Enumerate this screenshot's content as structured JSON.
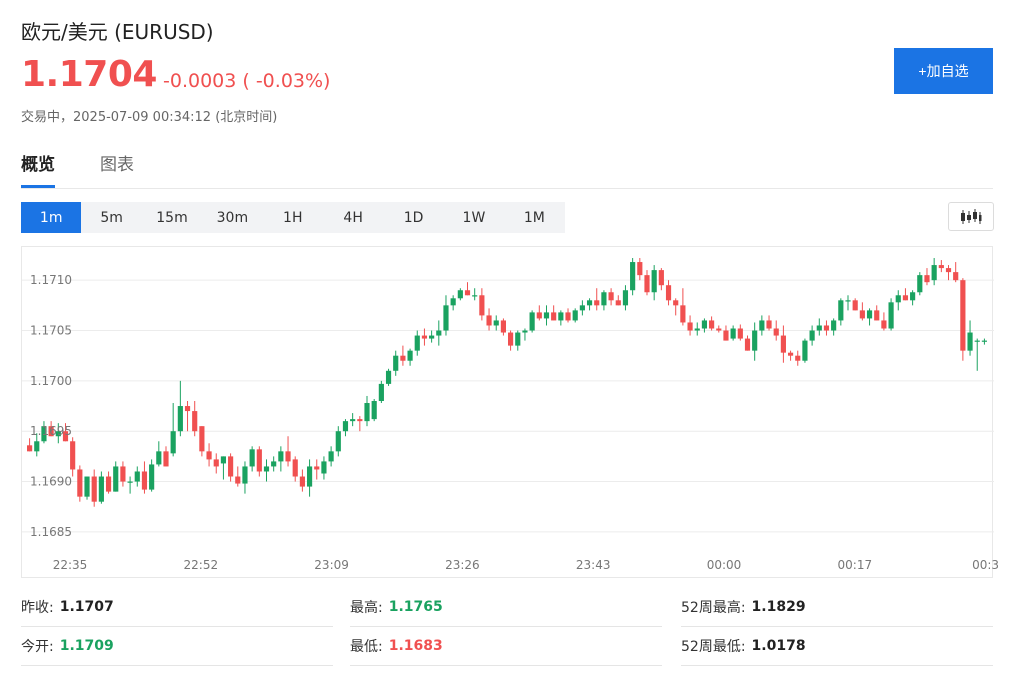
{
  "header": {
    "title": "欧元/美元 (EURUSD)",
    "price": "1.1704",
    "change": "-0.0003 ( -0.03%)",
    "status": "交易中，2025-07-09 00:34:12 (北京时间)",
    "watch_button": "+加自选"
  },
  "tabs": [
    {
      "label": "概览",
      "active": true
    },
    {
      "label": "图表",
      "active": false
    }
  ],
  "intervals": [
    {
      "label": "1m",
      "active": true
    },
    {
      "label": "5m"
    },
    {
      "label": "15m"
    },
    {
      "label": "30m"
    },
    {
      "label": "1H"
    },
    {
      "label": "4H"
    },
    {
      "label": "1D"
    },
    {
      "label": "1W"
    },
    {
      "label": "1M"
    }
  ],
  "chart_type_icon": "candlestick-icon",
  "colors": {
    "accent": "#1b74e4",
    "up": "#1aa260",
    "down": "#f05050"
  },
  "chart_data": {
    "type": "candlestick",
    "title": "",
    "xlabel": "",
    "ylabel": "",
    "ylim": [
      1.16835,
      1.17125
    ],
    "yticks": [
      "1.1685",
      "1.1690",
      "1.1695",
      "1.1700",
      "1.1705",
      "1.1710"
    ],
    "xticks": [
      "22:35",
      "22:52",
      "23:09",
      "23:26",
      "23:43",
      "00:00",
      "00:17",
      "00:3"
    ],
    "grid": true,
    "candles": [
      [
        1.16936,
        1.16943,
        1.1693,
        1.1693
      ],
      [
        1.1693,
        1.16948,
        1.16925,
        1.1694
      ],
      [
        1.1694,
        1.1696,
        1.16938,
        1.16955
      ],
      [
        1.16955,
        1.1696,
        1.16945,
        1.16945
      ],
      [
        1.16945,
        1.16958,
        1.16938,
        1.1695
      ],
      [
        1.1695,
        1.16958,
        1.1694,
        1.1694
      ],
      [
        1.1694,
        1.16944,
        1.16905,
        1.16912
      ],
      [
        1.16912,
        1.16916,
        1.1688,
        1.16885
      ],
      [
        1.16885,
        1.16905,
        1.16882,
        1.16905
      ],
      [
        1.16905,
        1.16912,
        1.16875,
        1.1688
      ],
      [
        1.1688,
        1.1691,
        1.16878,
        1.16905
      ],
      [
        1.16905,
        1.1691,
        1.16888,
        1.1689
      ],
      [
        1.1689,
        1.1692,
        1.1689,
        1.16915
      ],
      [
        1.16915,
        1.1692,
        1.16895,
        1.169
      ],
      [
        1.169,
        1.16905,
        1.16888,
        1.169
      ],
      [
        1.169,
        1.16915,
        1.16895,
        1.1691
      ],
      [
        1.1691,
        1.1692,
        1.16888,
        1.16892
      ],
      [
        1.16892,
        1.16922,
        1.1689,
        1.16917
      ],
      [
        1.16917,
        1.1694,
        1.16915,
        1.1693
      ],
      [
        1.1693,
        1.16935,
        1.16915,
        1.16915
      ],
      [
        1.16928,
        1.16978,
        1.16925,
        1.1695
      ],
      [
        1.1695,
        1.17,
        1.16945,
        1.16975
      ],
      [
        1.16975,
        1.1698,
        1.1695,
        1.1697
      ],
      [
        1.1697,
        1.1698,
        1.16945,
        1.1695
      ],
      [
        1.16955,
        1.16955,
        1.16925,
        1.1693
      ],
      [
        1.1693,
        1.16938,
        1.16915,
        1.16922
      ],
      [
        1.16922,
        1.16928,
        1.16908,
        1.16915
      ],
      [
        1.16918,
        1.16925,
        1.16902,
        1.16925
      ],
      [
        1.16925,
        1.16928,
        1.169,
        1.16905
      ],
      [
        1.16905,
        1.16915,
        1.16895,
        1.16898
      ],
      [
        1.16898,
        1.1692,
        1.16888,
        1.16915
      ],
      [
        1.16915,
        1.16935,
        1.1691,
        1.16932
      ],
      [
        1.16932,
        1.16935,
        1.16905,
        1.1691
      ],
      [
        1.1691,
        1.16922,
        1.169,
        1.16915
      ],
      [
        1.16915,
        1.16925,
        1.1691,
        1.1692
      ],
      [
        1.1692,
        1.16935,
        1.1691,
        1.1693
      ],
      [
        1.1693,
        1.16945,
        1.16915,
        1.1692
      ],
      [
        1.16922,
        1.16925,
        1.169,
        1.16905
      ],
      [
        1.16905,
        1.16912,
        1.1689,
        1.16895
      ],
      [
        1.16895,
        1.16922,
        1.16885,
        1.16915
      ],
      [
        1.16915,
        1.16922,
        1.16902,
        1.16912
      ],
      [
        1.16908,
        1.16925,
        1.16902,
        1.1692
      ],
      [
        1.1692,
        1.16935,
        1.16915,
        1.1693
      ],
      [
        1.1693,
        1.16955,
        1.16925,
        1.1695
      ],
      [
        1.1695,
        1.16962,
        1.16945,
        1.1696
      ],
      [
        1.1696,
        1.16968,
        1.16955,
        1.16962
      ],
      [
        1.16962,
        1.16965,
        1.1695,
        1.1696
      ],
      [
        1.1696,
        1.16985,
        1.16955,
        1.16978
      ],
      [
        1.16962,
        1.16982,
        1.1696,
        1.1698
      ],
      [
        1.1698,
        1.17,
        1.16978,
        1.16997
      ],
      [
        1.16997,
        1.17012,
        1.16995,
        1.1701
      ],
      [
        1.1701,
        1.1703,
        1.17005,
        1.17025
      ],
      [
        1.17025,
        1.17035,
        1.17015,
        1.1702
      ],
      [
        1.1702,
        1.17032,
        1.17015,
        1.1703
      ],
      [
        1.1703,
        1.1705,
        1.17025,
        1.17045
      ],
      [
        1.17045,
        1.17052,
        1.17035,
        1.17042
      ],
      [
        1.17042,
        1.1705,
        1.17038,
        1.17045
      ],
      [
        1.17045,
        1.1706,
        1.17035,
        1.1705
      ],
      [
        1.1705,
        1.17085,
        1.17045,
        1.17075
      ],
      [
        1.17075,
        1.17085,
        1.1707,
        1.17082
      ],
      [
        1.17082,
        1.17092,
        1.1708,
        1.1709
      ],
      [
        1.1709,
        1.17098,
        1.17085,
        1.17085
      ],
      [
        1.17085,
        1.17092,
        1.1708,
        1.17085
      ],
      [
        1.17085,
        1.17092,
        1.1706,
        1.17065
      ],
      [
        1.17065,
        1.17072,
        1.1705,
        1.17055
      ],
      [
        1.17055,
        1.17065,
        1.1705,
        1.1706
      ],
      [
        1.1706,
        1.17062,
        1.17045,
        1.17048
      ],
      [
        1.17048,
        1.1705,
        1.1703,
        1.17035
      ],
      [
        1.17035,
        1.1705,
        1.1703,
        1.17048
      ],
      [
        1.17048,
        1.17052,
        1.1704,
        1.1705
      ],
      [
        1.1705,
        1.1707,
        1.17048,
        1.17068
      ],
      [
        1.17068,
        1.17075,
        1.1706,
        1.17062
      ],
      [
        1.17062,
        1.17075,
        1.17055,
        1.17068
      ],
      [
        1.17068,
        1.17075,
        1.1706,
        1.1706
      ],
      [
        1.1706,
        1.1707,
        1.17055,
        1.17068
      ],
      [
        1.17068,
        1.17072,
        1.17058,
        1.1706
      ],
      [
        1.1706,
        1.17072,
        1.17058,
        1.1707
      ],
      [
        1.1707,
        1.1708,
        1.17065,
        1.17075
      ],
      [
        1.17075,
        1.17082,
        1.1707,
        1.1708
      ],
      [
        1.1708,
        1.17092,
        1.1707,
        1.17075
      ],
      [
        1.17075,
        1.1709,
        1.1707,
        1.17088
      ],
      [
        1.17088,
        1.17092,
        1.17075,
        1.1708
      ],
      [
        1.1708,
        1.17085,
        1.17075,
        1.17075
      ],
      [
        1.17075,
        1.17095,
        1.1707,
        1.1709
      ],
      [
        1.1709,
        1.17122,
        1.17085,
        1.17118
      ],
      [
        1.17118,
        1.17122,
        1.171,
        1.17105
      ],
      [
        1.17105,
        1.1711,
        1.17085,
        1.17088
      ],
      [
        1.17088,
        1.17115,
        1.1708,
        1.1711
      ],
      [
        1.1711,
        1.17112,
        1.1709,
        1.17095
      ],
      [
        1.17095,
        1.171,
        1.17075,
        1.1708
      ],
      [
        1.1708,
        1.17082,
        1.17065,
        1.17075
      ],
      [
        1.17075,
        1.17092,
        1.17055,
        1.17058
      ],
      [
        1.17058,
        1.17065,
        1.17045,
        1.1705
      ],
      [
        1.1705,
        1.17058,
        1.17045,
        1.17052
      ],
      [
        1.17052,
        1.17062,
        1.17048,
        1.1706
      ],
      [
        1.1706,
        1.17064,
        1.1705,
        1.17052
      ],
      [
        1.17052,
        1.17055,
        1.17048,
        1.1705
      ],
      [
        1.1705,
        1.17055,
        1.1704,
        1.1704
      ],
      [
        1.17042,
        1.17055,
        1.1704,
        1.17052
      ],
      [
        1.17052,
        1.17056,
        1.1704,
        1.17042
      ],
      [
        1.17042,
        1.17045,
        1.1703,
        1.1703
      ],
      [
        1.1703,
        1.17058,
        1.1702,
        1.1705
      ],
      [
        1.1705,
        1.17065,
        1.17045,
        1.1706
      ],
      [
        1.1706,
        1.17065,
        1.1705,
        1.17052
      ],
      [
        1.17052,
        1.1706,
        1.1704,
        1.17045
      ],
      [
        1.17045,
        1.17055,
        1.17018,
        1.17028
      ],
      [
        1.17028,
        1.1703,
        1.1702,
        1.17025
      ],
      [
        1.17025,
        1.1703,
        1.17015,
        1.1702
      ],
      [
        1.1702,
        1.17042,
        1.17018,
        1.1704
      ],
      [
        1.1704,
        1.17055,
        1.17035,
        1.1705
      ],
      [
        1.1705,
        1.17062,
        1.17045,
        1.17055
      ],
      [
        1.17055,
        1.1706,
        1.17045,
        1.1705
      ],
      [
        1.1705,
        1.17062,
        1.17045,
        1.1706
      ],
      [
        1.1706,
        1.17082,
        1.17055,
        1.1708
      ],
      [
        1.1708,
        1.17085,
        1.1707,
        1.1708
      ],
      [
        1.1708,
        1.17082,
        1.1707,
        1.1707
      ],
      [
        1.1707,
        1.17078,
        1.1706,
        1.17062
      ],
      [
        1.17062,
        1.17072,
        1.17055,
        1.1707
      ],
      [
        1.1707,
        1.17075,
        1.1706,
        1.1706
      ],
      [
        1.1706,
        1.17068,
        1.1705,
        1.17052
      ],
      [
        1.17052,
        1.17082,
        1.1705,
        1.17078
      ],
      [
        1.17078,
        1.1709,
        1.1707,
        1.17085
      ],
      [
        1.17085,
        1.17092,
        1.1708,
        1.1708
      ],
      [
        1.1708,
        1.1709,
        1.17075,
        1.17088
      ],
      [
        1.17088,
        1.17108,
        1.17085,
        1.17105
      ],
      [
        1.17105,
        1.17112,
        1.17095,
        1.17098
      ],
      [
        1.171,
        1.17122,
        1.17095,
        1.17115
      ],
      [
        1.17115,
        1.1712,
        1.17108,
        1.17112
      ],
      [
        1.17112,
        1.17115,
        1.171,
        1.17108
      ],
      [
        1.17108,
        1.17118,
        1.17098,
        1.171
      ],
      [
        1.171,
        1.17102,
        1.1702,
        1.1703
      ],
      [
        1.1703,
        1.1706,
        1.17025,
        1.17048
      ],
      [
        1.1704,
        1.17042,
        1.1701,
        1.1704
      ],
      [
        1.1704,
        1.17042,
        1.17036,
        1.1704
      ]
    ]
  },
  "stats": [
    {
      "label": "昨收:",
      "value": "1.1707",
      "tone": "neutral"
    },
    {
      "label": "最高:",
      "value": "1.1765",
      "tone": "up"
    },
    {
      "label": "52周最高:",
      "value": "1.1829",
      "tone": "neutral"
    },
    {
      "label": "今开:",
      "value": "1.1709",
      "tone": "up"
    },
    {
      "label": "最低:",
      "value": "1.1683",
      "tone": "down"
    },
    {
      "label": "52周最低:",
      "value": "1.0178",
      "tone": "neutral"
    }
  ]
}
